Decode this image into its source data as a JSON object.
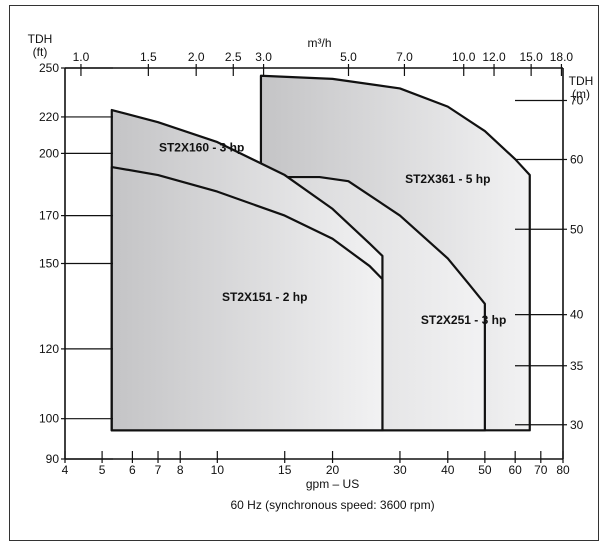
{
  "chart_data": {
    "type": "area",
    "title": "",
    "caption": "60 Hz (synchronous speed: 3600 rpm)",
    "x_bottom": {
      "label": "gpm – US",
      "scale": "log",
      "range": [
        4,
        80
      ],
      "ticks": [
        4,
        5,
        6,
        7,
        8,
        10,
        15,
        20,
        30,
        40,
        50,
        60,
        70,
        80
      ],
      "tick_labels": [
        "4",
        "5",
        "6",
        "7",
        "8",
        "10",
        "15",
        "20",
        "30",
        "40",
        "50",
        "60",
        "70",
        "80"
      ]
    },
    "x_top": {
      "label": "m³/h",
      "scale": "log",
      "ticks": [
        1.0,
        1.5,
        2.0,
        2.5,
        3.0,
        5.0,
        7.0,
        10.0,
        12.0,
        15.0,
        18.0
      ],
      "tick_labels": [
        "1.0",
        "1.5",
        "2.0",
        "2.5",
        "3.0",
        "5.0",
        "7.0",
        "10.0",
        "12.0",
        "15.0",
        "18.0"
      ]
    },
    "y_left": {
      "label_line1": "TDH",
      "label_line2": "(ft)",
      "scale": "log",
      "range": [
        90,
        250
      ],
      "ticks": [
        90,
        100,
        120,
        150,
        170,
        200,
        220,
        250
      ],
      "tick_labels": [
        "90",
        "100",
        "120",
        "150",
        "170",
        "200",
        "220",
        "250"
      ]
    },
    "y_right": {
      "label_line1": "TDH",
      "label_line2": "(m)",
      "scale": "log",
      "ticks": [
        30,
        35,
        40,
        50,
        60,
        70
      ],
      "tick_labels": [
        "30",
        "35",
        "40",
        "50",
        "60",
        "70"
      ]
    },
    "series": [
      {
        "name": "ST2X361 - 5 hp",
        "x_min": 13,
        "x_max": 65.5,
        "y_bottom": 97,
        "top_curve": [
          [
            13,
            245
          ],
          [
            20,
            243
          ],
          [
            30,
            237
          ],
          [
            40,
            226
          ],
          [
            50,
            212
          ],
          [
            60,
            197
          ],
          [
            65.5,
            189
          ]
        ]
      },
      {
        "name": "ST2X251 - 3 hp",
        "x_min": 5.3,
        "x_max": 50,
        "y_bottom": 97,
        "top_curve": [
          [
            18.5,
            188
          ],
          [
            22,
            186
          ],
          [
            30,
            170
          ],
          [
            40,
            152
          ],
          [
            45.5,
            142
          ],
          [
            50,
            135
          ]
        ]
      },
      {
        "name": "ST2X160 - 3 hp",
        "x_min": 5.3,
        "x_max": 27,
        "y_bottom": 97,
        "top_curve": [
          [
            5.3,
            224
          ],
          [
            7,
            217
          ],
          [
            10,
            206
          ],
          [
            15,
            189
          ],
          [
            20,
            173
          ],
          [
            25,
            158
          ],
          [
            27,
            153
          ]
        ]
      },
      {
        "name": "ST2X151 - 2 hp",
        "x_min": 5.3,
        "x_max": 27,
        "y_bottom": 97,
        "top_curve": [
          [
            5.3,
            193
          ],
          [
            7,
            189
          ],
          [
            10,
            181
          ],
          [
            15,
            170
          ],
          [
            20,
            160
          ],
          [
            25,
            149
          ],
          [
            27,
            144
          ]
        ]
      }
    ],
    "grid": false,
    "legend": "none"
  }
}
